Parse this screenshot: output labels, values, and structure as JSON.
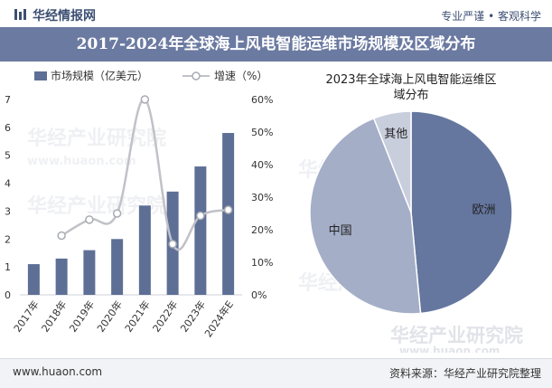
{
  "header": {
    "logo_text": "华经情报网",
    "slogan": "专业严谨 • 客观科学",
    "title": "2017-2024年全球海上风电智能运维市场规模及区域分布"
  },
  "watermark": {
    "cn": "华经产业研究院",
    "url": "www.huaon.com"
  },
  "footer": {
    "url": "www.huaon.com",
    "source": "资料来源：华经产业研究院整理"
  },
  "colors": {
    "bar": "#5e6f96",
    "line": "#c0c2c7",
    "title_band": "#6b7aa1",
    "pie_europe": "#65779f",
    "pie_china": "#a4aec7",
    "pie_other": "#c9cedd"
  },
  "chart_data": [
    {
      "type": "bar",
      "categories": [
        "2017年",
        "2018年",
        "2019年",
        "2020年",
        "2021年",
        "2022年",
        "2023年",
        "2024年E"
      ],
      "series": [
        {
          "name": "市场规模（亿美元）",
          "type": "bar",
          "axis": "left",
          "values": [
            1.1,
            1.3,
            1.6,
            2.0,
            3.2,
            3.7,
            4.6,
            5.8
          ]
        },
        {
          "name": "增速（%）",
          "type": "line",
          "axis": "right",
          "values": [
            null,
            18.2,
            23.1,
            25.0,
            60.0,
            15.6,
            24.3,
            26.1
          ]
        }
      ],
      "ylim_left": [
        0,
        7
      ],
      "ylim_right": [
        0,
        60
      ],
      "yticks_left": [
        "0",
        "1",
        "2",
        "3",
        "4",
        "5",
        "6",
        "7"
      ],
      "yticks_right": [
        "0%",
        "10%",
        "20%",
        "30%",
        "40%",
        "50%",
        "60%"
      ],
      "legend_position": "top-left",
      "grid": false
    },
    {
      "type": "pie",
      "title": "2023年全球海上风电智能运维区域分布",
      "labels": [
        "欧洲",
        "中国",
        "其他"
      ],
      "values": [
        48.5,
        45.5,
        6.0
      ],
      "unit": "%"
    }
  ]
}
